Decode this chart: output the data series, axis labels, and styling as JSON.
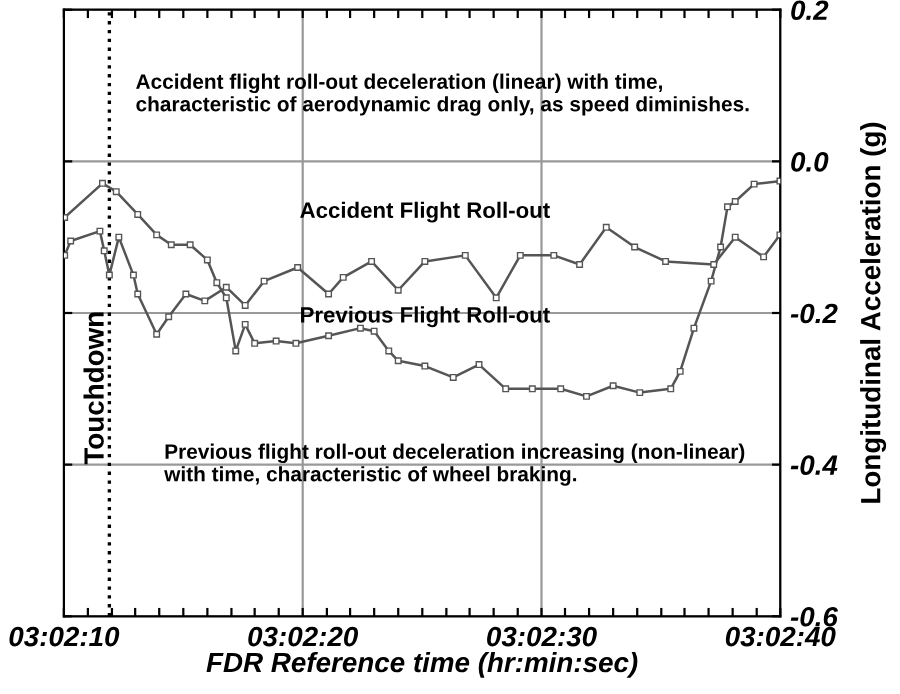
{
  "chart_data": {
    "type": "line",
    "xlabel": "FDR Reference time (hr:min:sec)",
    "ylabel": "Longitudinal Acceleration (g)",
    "xlim": [
      3.0361111,
      3.0444444
    ],
    "ylim": [
      -0.6,
      0.2
    ],
    "xticks": [
      {
        "value": 3.0361111,
        "label": "03:02:10"
      },
      {
        "value": 3.03639,
        "label": null
      },
      {
        "value": 3.03667,
        "label": null
      },
      {
        "value": 3.03694,
        "label": null
      },
      {
        "value": 3.03722,
        "label": null
      },
      {
        "value": 3.0375,
        "label": null
      },
      {
        "value": 3.03778,
        "label": null
      },
      {
        "value": 3.03806,
        "label": null
      },
      {
        "value": 3.03833,
        "label": null
      },
      {
        "value": 3.03861,
        "label": null
      },
      {
        "value": 3.0388889,
        "label": "03:02:20"
      },
      {
        "value": 3.03917,
        "label": null
      },
      {
        "value": 3.03944,
        "label": null
      },
      {
        "value": 3.03972,
        "label": null
      },
      {
        "value": 3.04,
        "label": null
      },
      {
        "value": 3.04028,
        "label": null
      },
      {
        "value": 3.04056,
        "label": null
      },
      {
        "value": 3.04083,
        "label": null
      },
      {
        "value": 3.04111,
        "label": null
      },
      {
        "value": 3.04139,
        "label": null
      },
      {
        "value": 3.0416667,
        "label": "03:02:30"
      },
      {
        "value": 3.04194,
        "label": null
      },
      {
        "value": 3.04222,
        "label": null
      },
      {
        "value": 3.0425,
        "label": null
      },
      {
        "value": 3.04278,
        "label": null
      },
      {
        "value": 3.04306,
        "label": null
      },
      {
        "value": 3.04333,
        "label": null
      },
      {
        "value": 3.04361,
        "label": null
      },
      {
        "value": 3.04389,
        "label": null
      },
      {
        "value": 3.04417,
        "label": null
      },
      {
        "value": 3.0444444,
        "label": "03:02:40"
      }
    ],
    "yticks": [
      {
        "value": 0.2,
        "label": "0.2"
      },
      {
        "value": 0.0,
        "label": "0.0"
      },
      {
        "value": -0.2,
        "label": "-0.2"
      },
      {
        "value": -0.4,
        "label": "-0.4"
      },
      {
        "value": -0.6,
        "label": "-0.6"
      }
    ],
    "grid": true,
    "marker": "square",
    "line_style": "solid",
    "series": [
      {
        "name": "Previous Flight Roll-out",
        "color": "#555555",
        "x": [
          3.03612,
          3.03656,
          3.03672,
          3.03697,
          3.03719,
          3.03736,
          3.03758,
          3.03778,
          3.03789,
          3.038,
          3.03811,
          3.03822,
          3.03833,
          3.03858,
          3.03881,
          3.03919,
          3.03956,
          3.03972,
          3.03989,
          3.04,
          3.04031,
          3.04064,
          3.04094,
          3.04125,
          3.04156,
          3.04189,
          3.04219,
          3.0425,
          3.04281,
          3.04317,
          3.04328,
          3.04344,
          3.04364,
          3.04375,
          3.04383,
          3.04392,
          3.04414,
          3.04444
        ],
        "values": [
          -0.074,
          -0.029,
          -0.04,
          -0.07,
          -0.097,
          -0.11,
          -0.11,
          -0.13,
          -0.16,
          -0.18,
          -0.25,
          -0.215,
          -0.24,
          -0.237,
          -0.24,
          -0.23,
          -0.22,
          -0.224,
          -0.25,
          -0.263,
          -0.27,
          -0.285,
          -0.268,
          -0.3,
          -0.3,
          -0.3,
          -0.31,
          -0.296,
          -0.305,
          -0.3,
          -0.277,
          -0.22,
          -0.158,
          -0.113,
          -0.06,
          -0.053,
          -0.03,
          -0.026
        ]
      },
      {
        "name": "Accident Flight Roll-out",
        "color": "#555555",
        "x": [
          3.03612,
          3.03619,
          3.03653,
          3.03658,
          3.03664,
          3.03675,
          3.03692,
          3.03697,
          3.03719,
          3.03733,
          3.03753,
          3.03775,
          3.038,
          3.03822,
          3.03844,
          3.03883,
          3.03919,
          3.03936,
          3.03969,
          3.04,
          3.04031,
          3.04078,
          3.04114,
          3.04142,
          3.04181,
          3.04211,
          3.04242,
          3.04275,
          3.04311,
          3.04367,
          3.04392,
          3.04425,
          3.04444
        ],
        "values": [
          -0.124,
          -0.105,
          -0.092,
          -0.118,
          -0.15,
          -0.1,
          -0.15,
          -0.175,
          -0.228,
          -0.205,
          -0.175,
          -0.184,
          -0.166,
          -0.19,
          -0.158,
          -0.14,
          -0.175,
          -0.153,
          -0.132,
          -0.17,
          -0.132,
          -0.124,
          -0.18,
          -0.124,
          -0.124,
          -0.136,
          -0.087,
          -0.113,
          -0.132,
          -0.136,
          -0.1,
          -0.126,
          -0.097
        ]
      }
    ],
    "ref_lines": [
      {
        "axis": "x",
        "value": 3.03664,
        "label": "Touchdown",
        "color": "#000000",
        "line_style": "dotted"
      }
    ],
    "annotations": [
      "Accident flight roll-out deceleration (linear) with time,\ncharacteristic of aerodynamic drag only, as speed diminishes.",
      "Previous flight roll-out deceleration increasing (non-linear)\nwith time, characteristic of wheel braking."
    ]
  }
}
